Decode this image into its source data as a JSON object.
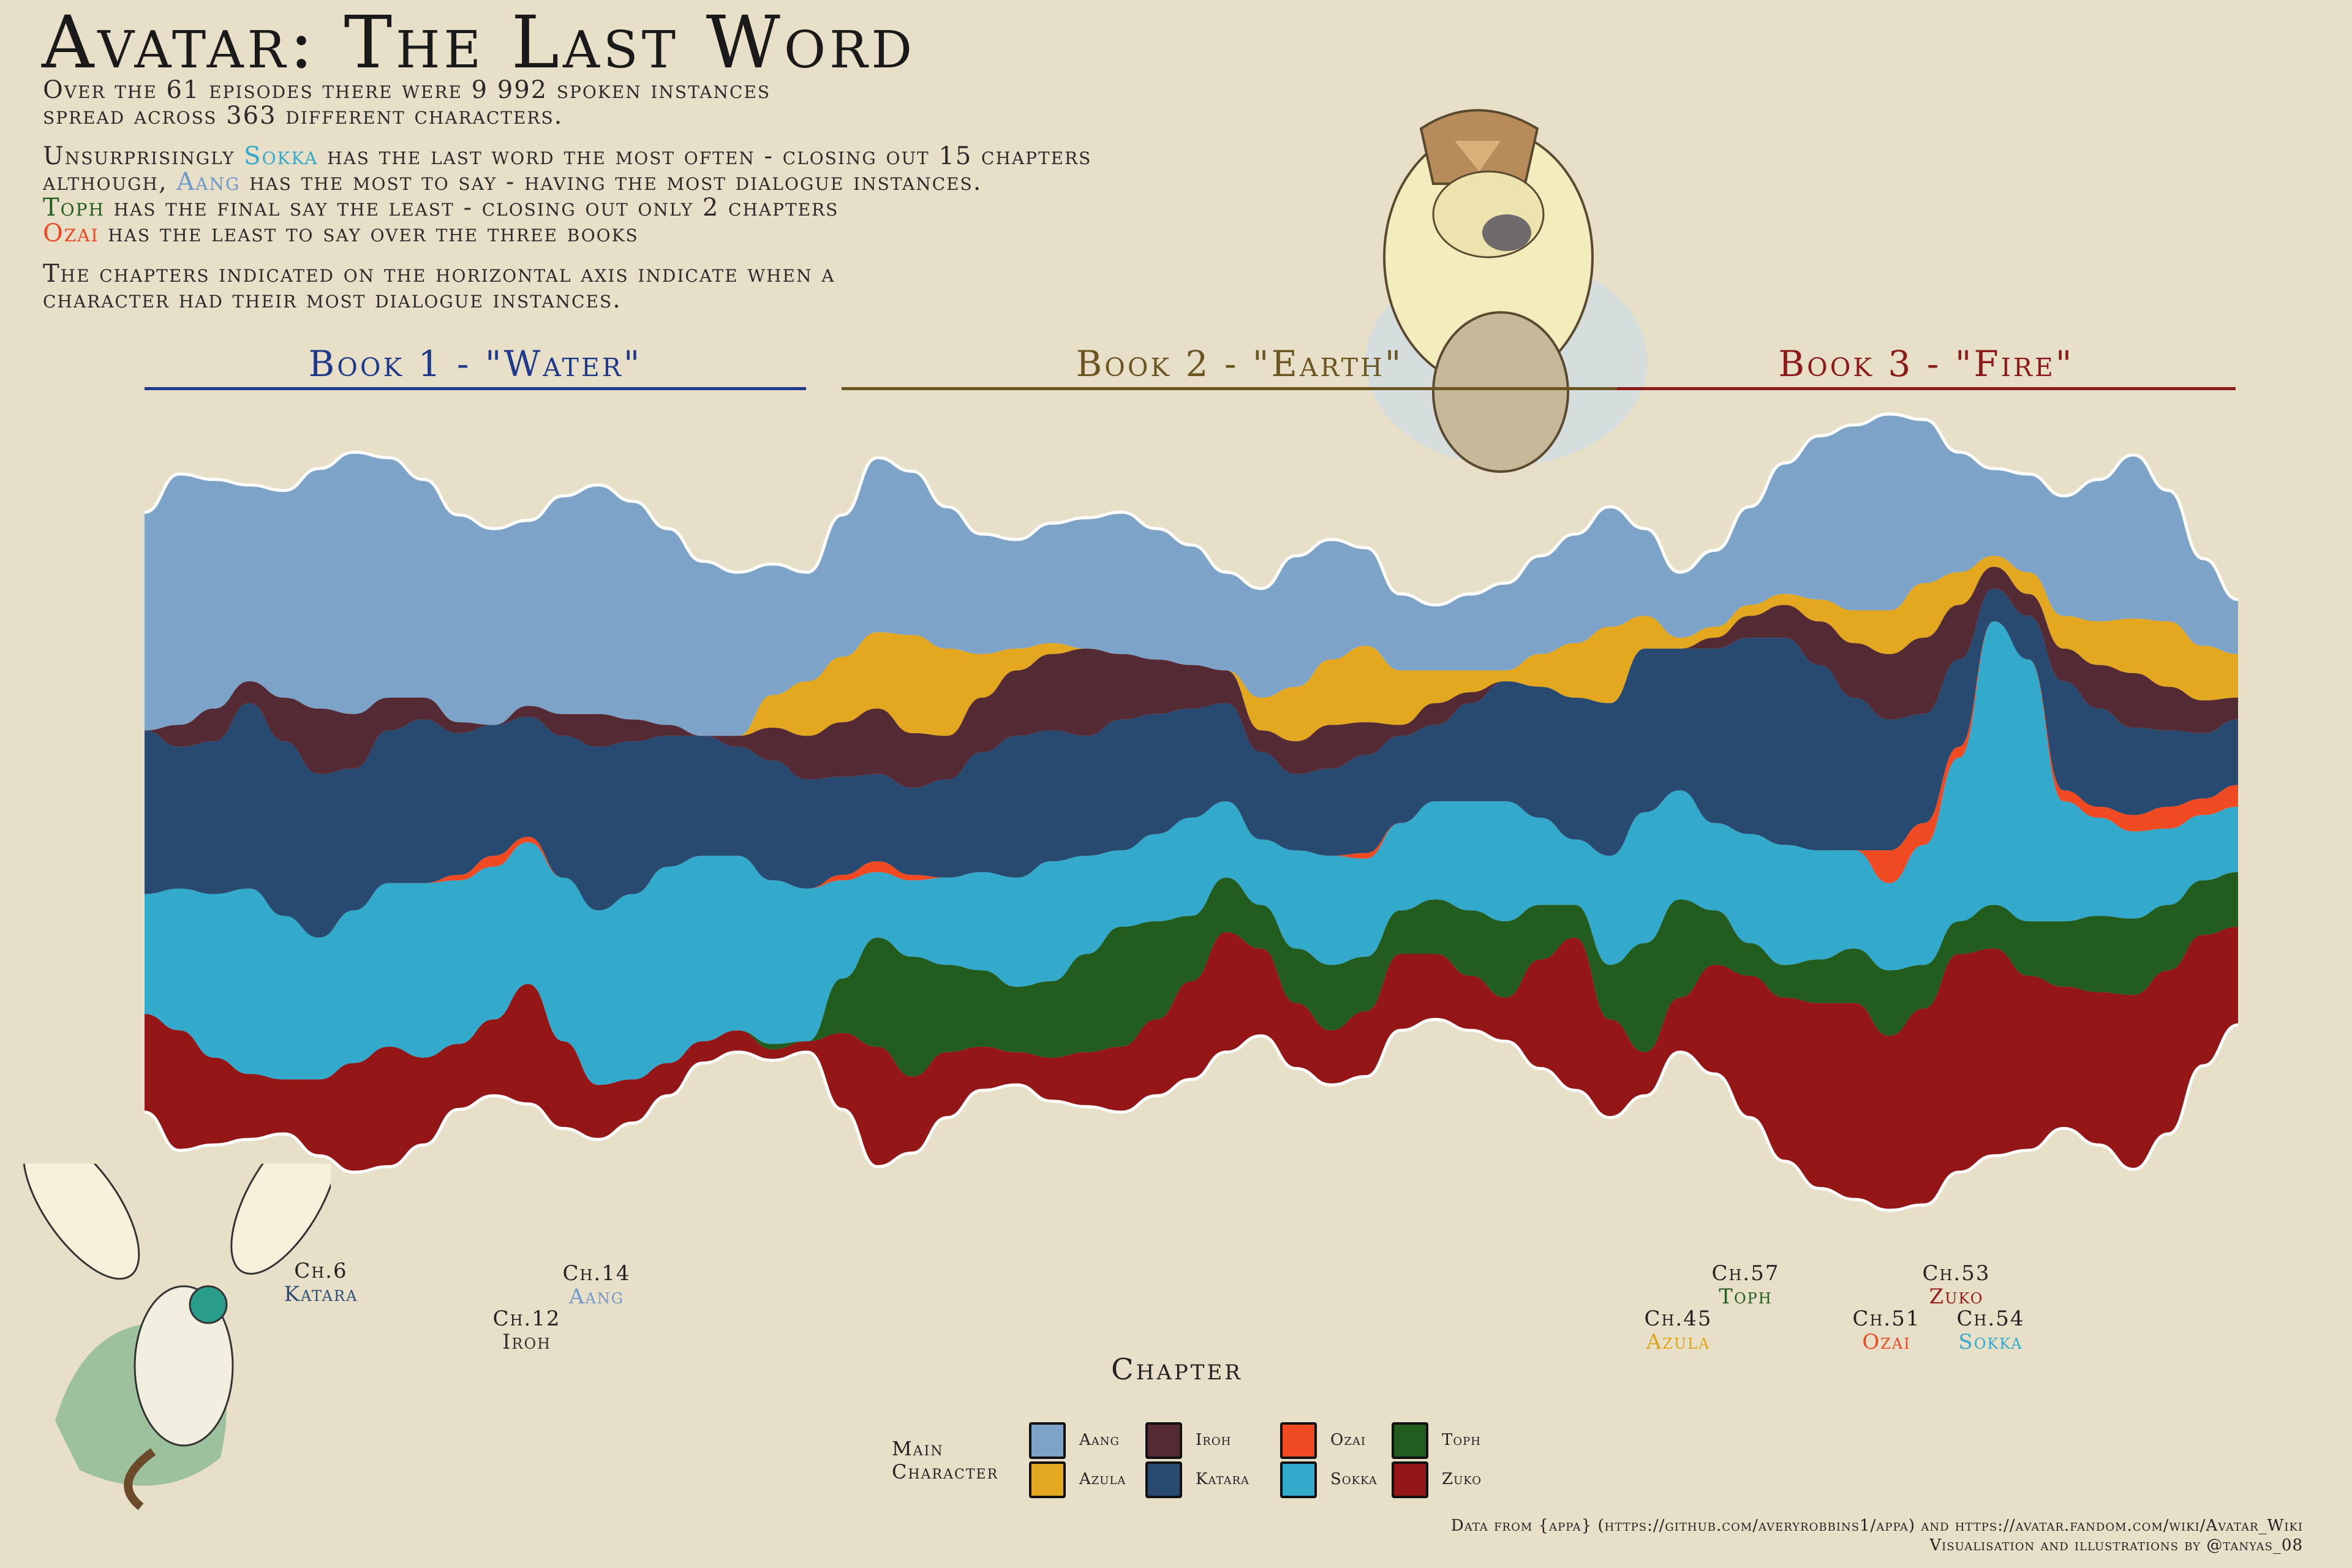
{
  "title": "Avatar: The Last Word",
  "intro": {
    "p1_line1": "Over the 61 episodes there were 9 992 spoken instances",
    "p1_line2": "spread across 363 different characters.",
    "p2_a": "Unsurprisingly ",
    "p2_sokka": "Sokka",
    "p2_b": " has the last word the most often - closing out 15 chapters",
    "p3_a": "although, ",
    "p3_aang": "Aang",
    "p3_b": " has the most to say - having the most dialogue instances.",
    "p4_toph": "Toph",
    "p4_b": " has the final say the least - closing out only 2 chapters",
    "p5_ozai": "Ozai",
    "p5_b": " has the least to say over the three books",
    "p6_line1": "The chapters indicated on the horizontal axis indicate when a",
    "p6_line2": "character had their most dialogue instances."
  },
  "books": [
    {
      "label": "Book 1 - \"Water\"",
      "color": "#1f3a8a"
    },
    {
      "label": "Book 2 - \"Earth\"",
      "color": "#6b5520"
    },
    {
      "label": "Book 3 - \"Fire\"",
      "color": "#8b1a1a"
    }
  ],
  "annotations": [
    {
      "chapter": "Ch.6",
      "name": "Katara"
    },
    {
      "chapter": "Ch.14",
      "name": "Aang"
    },
    {
      "chapter": "Ch.12",
      "name": "Iroh"
    },
    {
      "chapter": "Ch.57",
      "name": "Toph"
    },
    {
      "chapter": "Ch.45",
      "name": "Azula"
    },
    {
      "chapter": "Ch.53",
      "name": "Zuko"
    },
    {
      "chapter": "Ch.51",
      "name": "Ozai"
    },
    {
      "chapter": "Ch.54",
      "name": "Sokka"
    }
  ],
  "axis_title": "Chapter",
  "legend": {
    "title_line1": "Main",
    "title_line2": "Character",
    "items": [
      {
        "name": "Aang",
        "color": "#7ea3c8"
      },
      {
        "name": "Azula",
        "color": "#e3a820"
      },
      {
        "name": "Iroh",
        "color": "#542a34"
      },
      {
        "name": "Katara",
        "color": "#294a70"
      },
      {
        "name": "Ozai",
        "color": "#f04a22"
      },
      {
        "name": "Sokka",
        "color": "#33a9cb"
      },
      {
        "name": "Toph",
        "color": "#225c1f"
      },
      {
        "name": "Zuko",
        "color": "#951616"
      }
    ]
  },
  "footer": {
    "line1": "Data from {appa} (https://github.com/averyrobbins1/appa) and  https://avatar.fandom.com/wiki/Avatar_Wiki",
    "line2": "Visualisation and illustrations by @tanyas_08"
  },
  "chart_data": {
    "type": "area",
    "style": "streamgraph",
    "x": [
      1,
      2,
      3,
      4,
      5,
      6,
      7,
      8,
      9,
      10,
      11,
      12,
      13,
      14,
      15,
      16,
      17,
      18,
      19,
      20,
      21,
      22,
      23,
      24,
      25,
      26,
      27,
      28,
      29,
      30,
      31,
      32,
      33,
      34,
      35,
      36,
      37,
      38,
      39,
      40,
      41,
      42,
      43,
      44,
      45,
      46,
      47,
      48,
      49,
      50,
      51,
      52,
      53,
      54,
      55,
      56,
      57,
      58,
      59,
      60,
      61
    ],
    "xlabel": "Chapter",
    "legend_title": "Main Character",
    "series": [
      {
        "name": "Zuko",
        "color": "#951616",
        "values": [
          18,
          22,
          16,
          12,
          10,
          14,
          20,
          22,
          16,
          12,
          14,
          22,
          16,
          10,
          8,
          6,
          4,
          4,
          2,
          2,
          14,
          22,
          14,
          12,
          8,
          6,
          8,
          10,
          12,
          14,
          18,
          22,
          16,
          12,
          10,
          12,
          14,
          12,
          10,
          8,
          20,
          28,
          18,
          8,
          10,
          20,
          26,
          30,
          34,
          36,
          32,
          36,
          40,
          38,
          32,
          26,
          28,
          32,
          30,
          24,
          18
        ]
      },
      {
        "name": "Toph",
        "color": "#225c1f",
        "values": [
          0,
          0,
          0,
          0,
          0,
          0,
          0,
          0,
          0,
          0,
          0,
          0,
          0,
          0,
          0,
          0,
          0,
          0,
          1,
          0,
          10,
          20,
          22,
          16,
          14,
          12,
          14,
          18,
          22,
          18,
          12,
          10,
          8,
          10,
          12,
          10,
          8,
          10,
          12,
          14,
          10,
          6,
          10,
          20,
          18,
          10,
          6,
          6,
          8,
          10,
          12,
          8,
          6,
          8,
          10,
          12,
          14,
          14,
          12,
          10,
          10
        ]
      },
      {
        "name": "Sokka",
        "color": "#33a9cb",
        "values": [
          22,
          26,
          30,
          34,
          30,
          26,
          28,
          30,
          32,
          30,
          28,
          26,
          30,
          32,
          34,
          36,
          34,
          32,
          30,
          28,
          18,
          12,
          14,
          16,
          18,
          20,
          22,
          18,
          14,
          16,
          18,
          14,
          12,
          18,
          20,
          18,
          16,
          18,
          20,
          22,
          16,
          12,
          20,
          24,
          20,
          16,
          20,
          22,
          20,
          18,
          16,
          22,
          30,
          52,
          48,
          22,
          18,
          16,
          14,
          12,
          12
        ]
      },
      {
        "name": "Ozai",
        "color": "#f04a22",
        "values": [
          0,
          0,
          0,
          0,
          0,
          0,
          0,
          0,
          0,
          1,
          2,
          1,
          0,
          0,
          0,
          0,
          0,
          0,
          0,
          0,
          1,
          2,
          1,
          0,
          0,
          0,
          0,
          0,
          0,
          0,
          0,
          0,
          0,
          0,
          0,
          1,
          0,
          0,
          0,
          0,
          0,
          0,
          0,
          0,
          0,
          0,
          0,
          0,
          0,
          0,
          6,
          4,
          2,
          0,
          0,
          2,
          2,
          3,
          4,
          3,
          4
        ]
      },
      {
        "name": "Katara",
        "color": "#294a70",
        "values": [
          30,
          26,
          28,
          34,
          32,
          30,
          26,
          28,
          30,
          26,
          24,
          22,
          26,
          30,
          28,
          24,
          22,
          20,
          22,
          20,
          18,
          16,
          16,
          18,
          22,
          26,
          24,
          22,
          24,
          22,
          20,
          18,
          16,
          14,
          16,
          18,
          16,
          14,
          18,
          22,
          24,
          26,
          28,
          30,
          26,
          32,
          36,
          38,
          34,
          28,
          24,
          20,
          16,
          6,
          8,
          20,
          18,
          16,
          14,
          12,
          12
        ]
      },
      {
        "name": "Iroh",
        "color": "#542a34",
        "values": [
          0,
          4,
          6,
          4,
          8,
          12,
          10,
          6,
          4,
          2,
          0,
          2,
          4,
          6,
          4,
          2,
          0,
          2,
          6,
          8,
          10,
          12,
          10,
          8,
          10,
          12,
          14,
          16,
          12,
          10,
          8,
          6,
          4,
          6,
          8,
          6,
          2,
          4,
          2,
          0,
          0,
          0,
          0,
          0,
          0,
          2,
          4,
          6,
          8,
          10,
          12,
          14,
          10,
          4,
          4,
          6,
          8,
          10,
          8,
          6,
          4
        ]
      },
      {
        "name": "Azula",
        "color": "#e3a820",
        "values": [
          0,
          0,
          0,
          0,
          0,
          0,
          0,
          0,
          0,
          0,
          0,
          0,
          0,
          0,
          0,
          0,
          0,
          0,
          6,
          10,
          12,
          14,
          18,
          16,
          8,
          4,
          2,
          0,
          0,
          0,
          0,
          0,
          6,
          10,
          12,
          14,
          10,
          6,
          4,
          2,
          6,
          10,
          14,
          6,
          2,
          2,
          2,
          2,
          4,
          6,
          8,
          10,
          6,
          2,
          4,
          6,
          8,
          10,
          12,
          10,
          8
        ]
      },
      {
        "name": "Aang",
        "color": "#7ea3c8",
        "values": [
          40,
          46,
          42,
          36,
          38,
          44,
          48,
          44,
          40,
          38,
          36,
          34,
          40,
          42,
          40,
          36,
          32,
          30,
          24,
          20,
          26,
          32,
          30,
          26,
          22,
          20,
          22,
          24,
          26,
          24,
          22,
          18,
          20,
          24,
          22,
          18,
          14,
          12,
          14,
          16,
          18,
          20,
          22,
          16,
          12,
          14,
          18,
          24,
          30,
          34,
          36,
          30,
          22,
          16,
          18,
          22,
          26,
          30,
          24,
          16,
          10
        ]
      }
    ]
  }
}
